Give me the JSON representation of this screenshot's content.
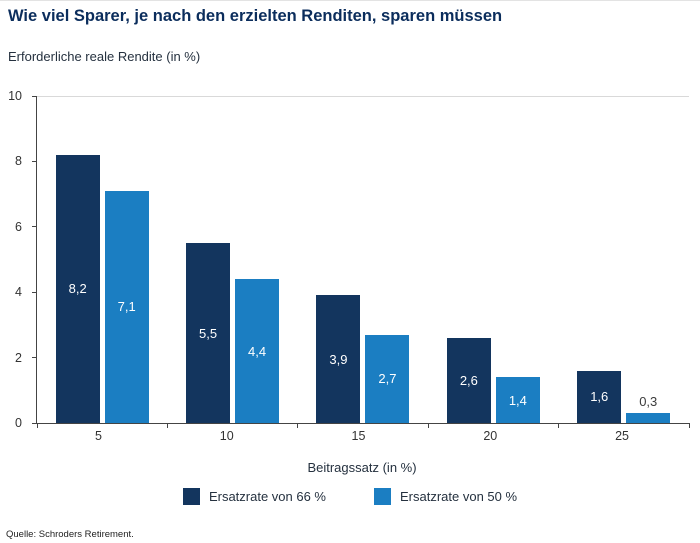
{
  "title": "Wie viel Sparer, je nach den erzielten Renditen, sparen müssen",
  "subtitle": "Erforderliche reale Rendite (in %)",
  "source": "Quelle: Schroders Retirement.",
  "colors": {
    "dark": "#13355e",
    "light": "#1b7ec2",
    "title": "#0b2d5c",
    "axis": "#444444",
    "topline": "#d9d9d9"
  },
  "chart_data": {
    "type": "bar",
    "categories": [
      "5",
      "10",
      "15",
      "20",
      "25"
    ],
    "series": [
      {
        "name": "Ersatzrate von 66 %",
        "color_key": "dark",
        "values": [
          8.2,
          5.5,
          3.9,
          2.6,
          1.6
        ],
        "labels": [
          "8,2",
          "5,5",
          "3,9",
          "2,6",
          "1,6"
        ]
      },
      {
        "name": "Ersatzrate von 50 %",
        "color_key": "light",
        "values": [
          7.1,
          4.4,
          2.7,
          1.4,
          0.3
        ],
        "labels": [
          "7,1",
          "4,4",
          "2,7",
          "1,4",
          "0,3"
        ]
      }
    ],
    "xlabel": "Beitragssatz (in %)",
    "ylabel": "Erforderliche reale Rendite (in %)",
    "ylim": [
      0,
      10
    ],
    "yticks": [
      0,
      2,
      4,
      6,
      8,
      10
    ],
    "grid": false,
    "legend_position": "bottom"
  }
}
